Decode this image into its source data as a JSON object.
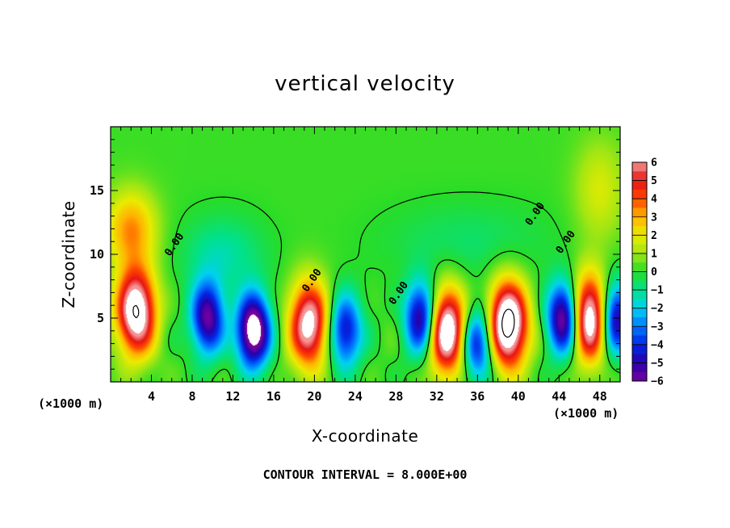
{
  "chart_data": {
    "type": "heatmap",
    "title": "vertical velocity",
    "xlabel": "X-coordinate",
    "ylabel": "Z-coordinate",
    "x_unit": "(×1000 m)",
    "z_unit": "(×1000 m)",
    "xlim": [
      0,
      50
    ],
    "ylim": [
      0,
      20
    ],
    "x_ticks": [
      "4",
      "8",
      "12",
      "16",
      "20",
      "24",
      "28",
      "32",
      "36",
      "40",
      "44",
      "48"
    ],
    "y_ticks": [
      "5",
      "10",
      "15"
    ],
    "contour_note": "CONTOUR INTERVAL = 8.000E+00",
    "contour_label": "0.00",
    "colorbar": {
      "min": -6,
      "max": 6,
      "labels": [
        "6",
        "5",
        "4",
        "3",
        "2",
        "1",
        "0",
        "−1",
        "−2",
        "−3",
        "−4",
        "−5",
        "−6"
      ]
    },
    "updrafts": [
      {
        "x": 2.5,
        "z": 5.5,
        "peak": 8
      },
      {
        "x": 19.5,
        "z": 4.5,
        "peak": 7
      },
      {
        "x": 33,
        "z": 4,
        "peak": 8
      },
      {
        "x": 39,
        "z": 4.5,
        "peak": 9
      },
      {
        "x": 47,
        "z": 5,
        "peak": 8
      }
    ],
    "downdrafts": [
      {
        "x": 9.5,
        "z": 5,
        "peak": -6
      },
      {
        "x": 14,
        "z": 4,
        "peak": -8
      },
      {
        "x": 23,
        "z": 4,
        "peak": -5
      },
      {
        "x": 30.5,
        "z": 5,
        "peak": -6
      },
      {
        "x": 36,
        "z": 3,
        "peak": -5
      },
      {
        "x": 44.5,
        "z": 5,
        "peak": -7
      },
      {
        "x": 49.5,
        "z": 5,
        "peak": -6
      }
    ],
    "colors": {
      "above_max": "#ffffff",
      "below_min": "#ffffff",
      "background": "#ffffff",
      "contour": "#000000"
    }
  }
}
